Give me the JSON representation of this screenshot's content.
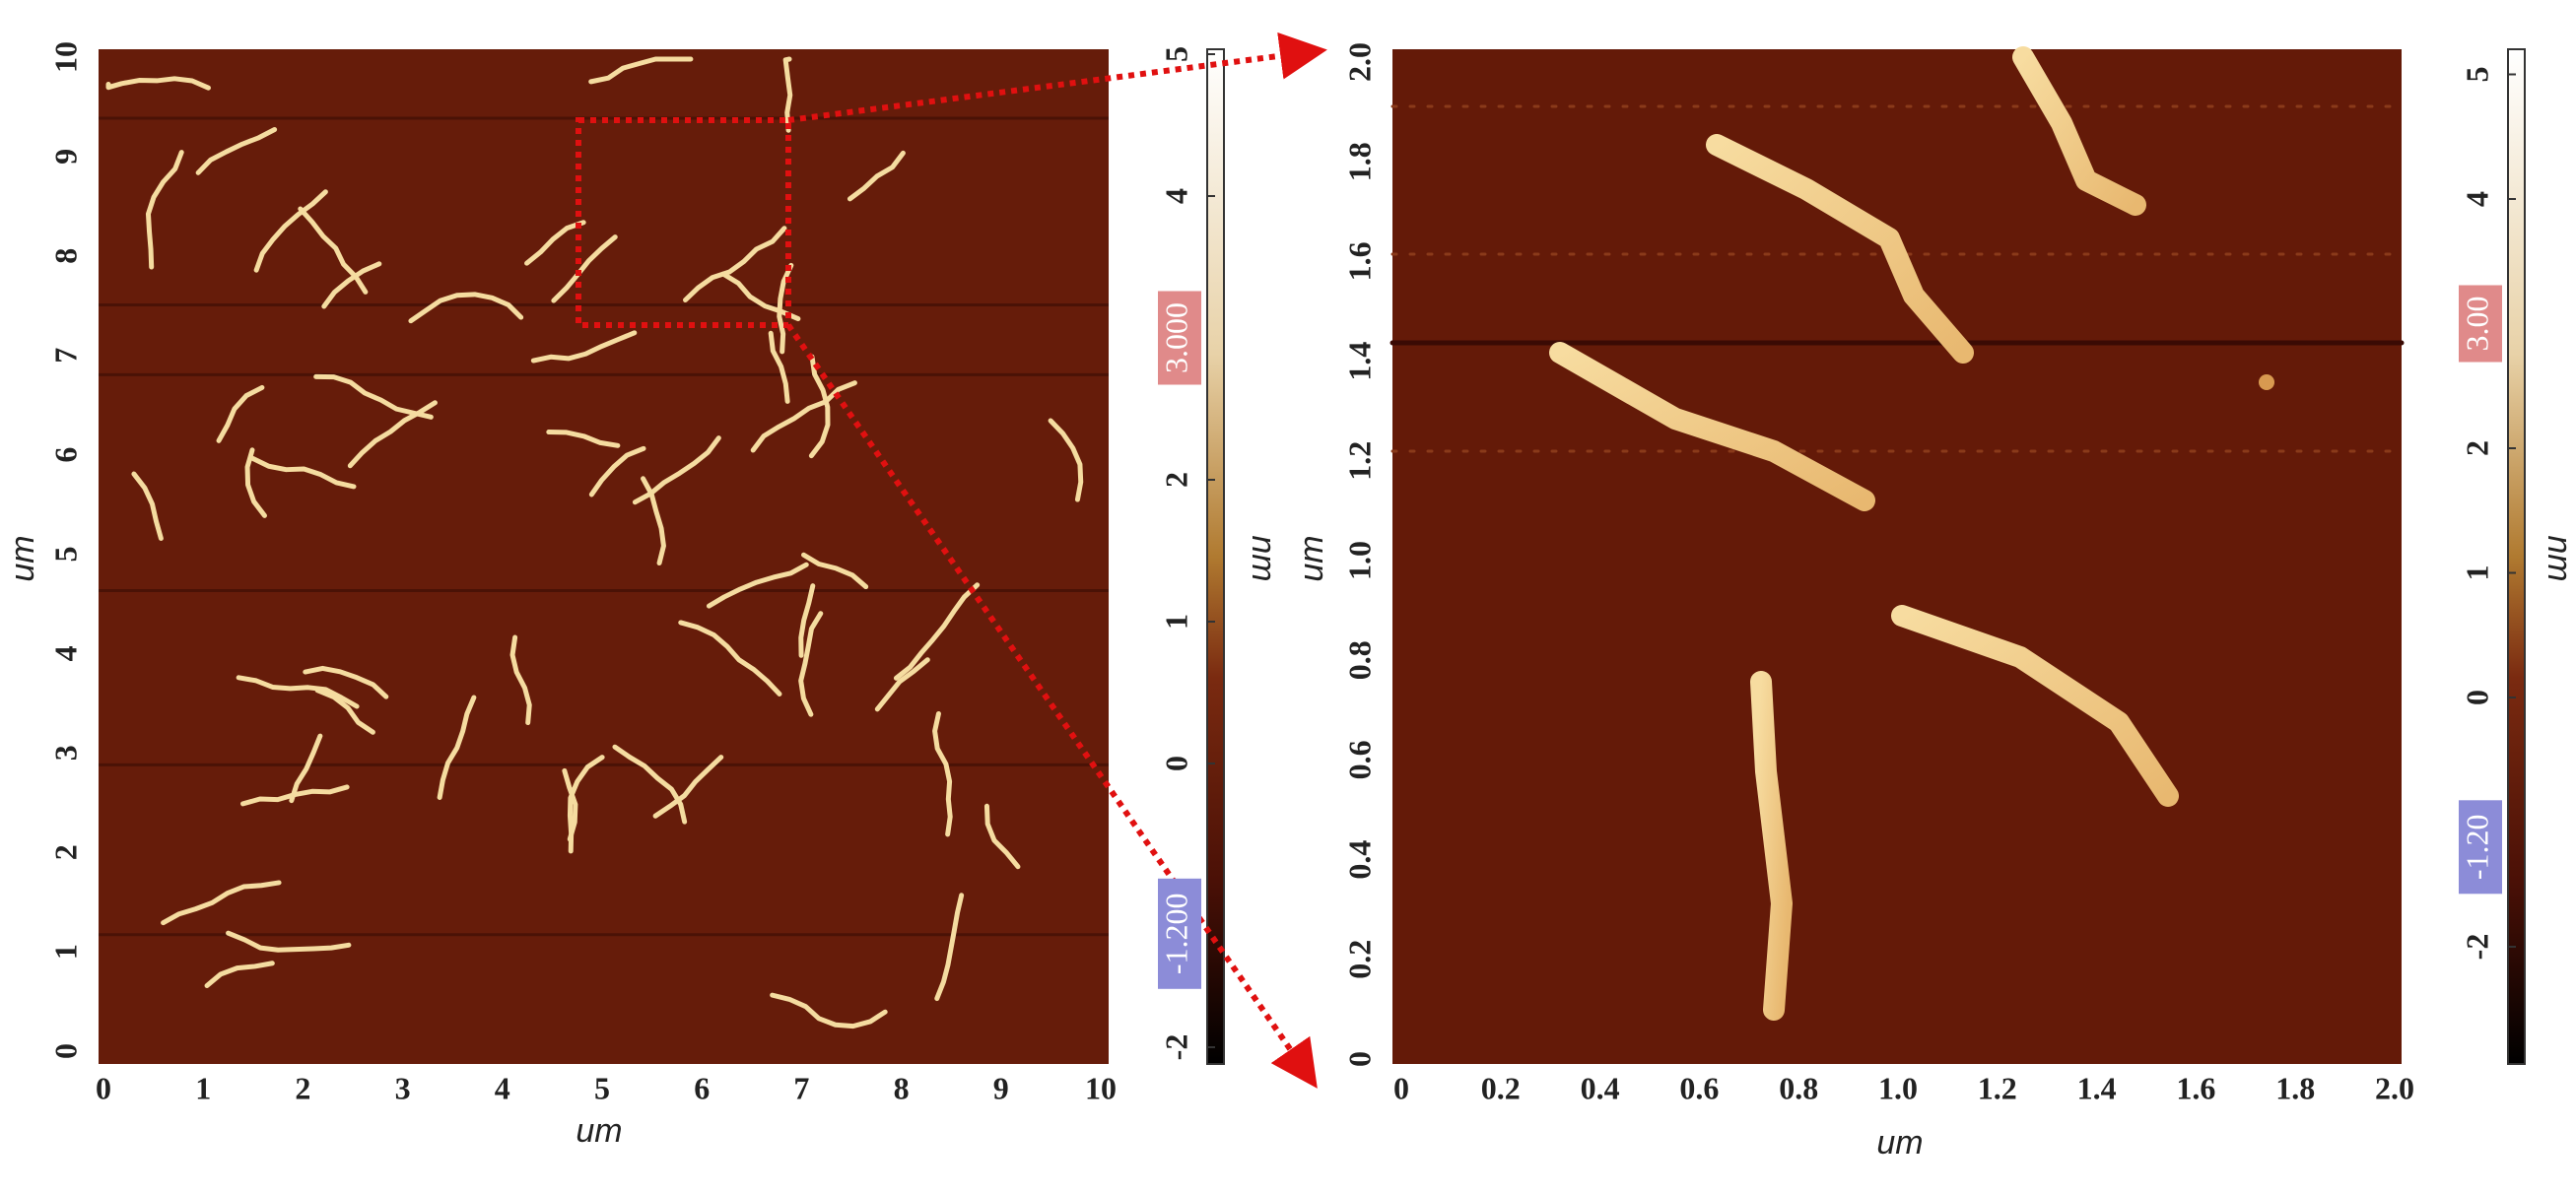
{
  "left_panel": {
    "x_axis": {
      "label": "um",
      "ticks": [
        0,
        1,
        2,
        3,
        4,
        5,
        6,
        7,
        8,
        9,
        10
      ]
    },
    "y_axis": {
      "label": "um",
      "ticks": [
        0,
        1,
        2,
        3,
        4,
        5,
        6,
        7,
        8,
        9,
        10
      ]
    },
    "colorbar": {
      "label": "nm",
      "ticks": [
        5,
        4,
        2,
        1,
        0,
        -2
      ],
      "highlights": [
        "3.000",
        "-1.200"
      ]
    }
  },
  "right_panel": {
    "x_axis": {
      "label": "um",
      "ticks": [
        "0",
        "0.2",
        "0.4",
        "0.6",
        "0.8",
        "1.0",
        "1.2",
        "1.4",
        "1.6",
        "1.8",
        "2.0"
      ]
    },
    "y_axis": {
      "label": "um",
      "ticks": [
        "0",
        "0.2",
        "0.4",
        "0.6",
        "0.8",
        "1.0",
        "1.2",
        "1.4",
        "1.6",
        "1.8",
        "2.0"
      ]
    },
    "colorbar": {
      "label": "nm",
      "ticks": [
        5,
        4,
        2,
        1,
        0,
        -2
      ],
      "highlights": [
        "3.00",
        "-1.20"
      ]
    }
  }
}
